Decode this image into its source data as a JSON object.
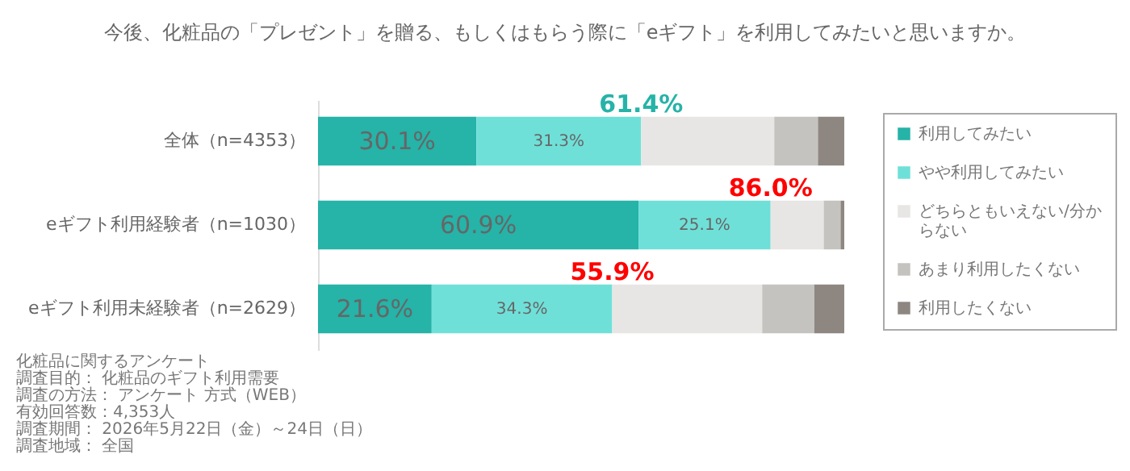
{
  "chart_data": {
    "type": "bar",
    "orientation": "horizontal",
    "stacked": true,
    "title": "今後、化粧品の「プレゼント」を贈る、もしくはもらう際に「eギフト」を利用してみたいと思いますか。",
    "categories": [
      "全体（n=4353）",
      "eギフト利用経験者（n=1030）",
      "eギフト利用未経験者（n=2629）"
    ],
    "xlim": [
      0,
      100
    ],
    "legend": "right",
    "grid": false,
    "series": [
      {
        "name": "利用してみたい",
        "color": "#26b3a8",
        "values": [
          30.1,
          60.9,
          21.6
        ],
        "value_labels": [
          "30.1%",
          "60.9%",
          "21.6%"
        ]
      },
      {
        "name": "やや利用してみたい",
        "color": "#6fe0d8",
        "values": [
          31.3,
          25.1,
          34.3
        ],
        "value_labels": [
          "31.3%",
          "25.1%",
          "34.3%"
        ]
      },
      {
        "name": "どちらともいえない/分からない",
        "color": "#e7e6e4",
        "values": [
          25.3,
          10.1,
          28.5
        ]
      },
      {
        "name": "あまり利用したくない",
        "color": "#c4c3bf",
        "values": [
          8.3,
          3.2,
          9.9
        ]
      },
      {
        "name": "利用したくない",
        "color": "#8e8781",
        "values": [
          5.0,
          0.7,
          5.7
        ]
      }
    ],
    "annotations": [
      {
        "text": "61.4%",
        "x": 61.4,
        "y": "全体（n=4353）"
      },
      {
        "text": "86.0%",
        "x": 86.0,
        "y": "eギフト利用経験者（n=1030）"
      },
      {
        "text": "55.9%",
        "x": 55.9,
        "y": "eギフト利用未経験者（n=2629）"
      },
      "化粧品に関するアンケート",
      "調査目的： 化粧品のギフト利用需要",
      "調査の方法： アンケート 方式（WEB）",
      "有効回答数：4,353人",
      "調査期間： 2026年5月22日（金）～24日（日）",
      "調査地域： 全国"
    ]
  }
}
